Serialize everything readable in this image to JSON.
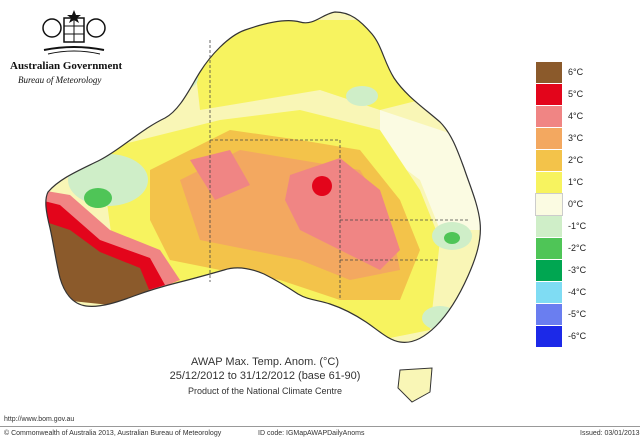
{
  "header": {
    "government": "Australian Government",
    "bureau": "Bureau of Meteorology"
  },
  "map": {
    "region": "Australia",
    "colors": {
      "p6": "#8b5a2b",
      "p5": "#e3051b",
      "p4": "#f08584",
      "p3": "#f3a860",
      "p2": "#f7e54c",
      "p1": "#f9f6b6",
      "z0": "#f7f8e5",
      "m1": "#cceccb",
      "m2": "#4fc557",
      "m3": "#00a651",
      "m4": "#7fd4f1",
      "m5": "#6a7ef0",
      "m6": "#1c29e8",
      "ocean": "#ffffff",
      "coast": "#333333"
    }
  },
  "legend": [
    {
      "label": "6°C",
      "color": "#8b5a2b"
    },
    {
      "label": "5°C",
      "color": "#e3051b"
    },
    {
      "label": "4°C",
      "color": "#f08584"
    },
    {
      "label": "3°C",
      "color": "#f3a860"
    },
    {
      "label": "2°C",
      "color": "#f3c34a"
    },
    {
      "label": "1°C",
      "color": "#f7f35f"
    },
    {
      "label": "0°C",
      "color": "#fbfbe2"
    },
    {
      "label": "-1°C",
      "color": "#cfeec8"
    },
    {
      "label": "-2°C",
      "color": "#4fc557"
    },
    {
      "label": "-3°C",
      "color": "#00a651"
    },
    {
      "label": "-4°C",
      "color": "#7fdcf3"
    },
    {
      "label": "-5°C",
      "color": "#6a7ef0"
    },
    {
      "label": "-6°C",
      "color": "#1c29e8"
    }
  ],
  "captions": {
    "title": "AWAP Max. Temp. Anom. (°C)",
    "dates": "25/12/2012 to 31/12/2012 (base 61-90)",
    "product": "Product of the National Climate Centre"
  },
  "footer": {
    "url": "http://www.bom.gov.au",
    "copyright": "© Commonwealth of Australia 2013, Australian Bureau of Meteorology",
    "id": "ID code: IGMapAWAPDailyAnoms",
    "issued": "Issued: 03/01/2013"
  }
}
